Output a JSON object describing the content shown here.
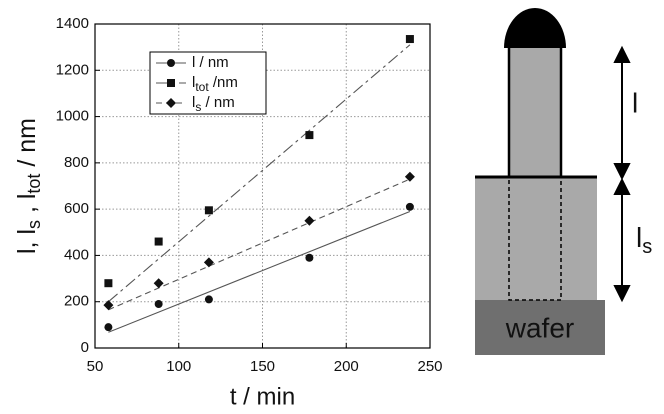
{
  "chart_data": {
    "type": "scatter",
    "xlabel": "t / min",
    "ylabel": [
      "l,  l",
      "s",
      " , l",
      "tot",
      " / nm"
    ],
    "xlim": [
      50,
      250
    ],
    "xticks": [
      50,
      100,
      150,
      200,
      250
    ],
    "ylim": [
      0,
      1400
    ],
    "yticks": [
      0,
      200,
      400,
      600,
      800,
      1000,
      1200,
      1400
    ],
    "grid": true,
    "legend": "upper left",
    "series": [
      {
        "name": [
          "l / nm"
        ],
        "color": "#111111",
        "marker": "circle",
        "line_style": "solid",
        "x": [
          58,
          88,
          118,
          178,
          238
        ],
        "values": [
          90,
          190,
          210,
          390,
          610
        ],
        "fit": {
          "x": [
            58,
            238
          ],
          "values": [
            68,
            590
          ]
        }
      },
      {
        "name": [
          "l",
          "tot",
          " /nm"
        ],
        "color": "#111111",
        "marker": "square",
        "line_style": "dashdot",
        "x": [
          58,
          88,
          118,
          178,
          238
        ],
        "values": [
          280,
          460,
          595,
          920,
          1335
        ],
        "fit": {
          "x": [
            58,
            238
          ],
          "values": [
            200,
            1310
          ]
        }
      },
      {
        "name": [
          "l",
          "s",
          " / nm"
        ],
        "color": "#111111",
        "marker": "diamond",
        "line_style": "dashed",
        "x": [
          58,
          88,
          118,
          178,
          238
        ],
        "values": [
          185,
          280,
          370,
          550,
          740
        ],
        "fit": {
          "x": [
            58,
            238
          ],
          "values": [
            165,
            730
          ]
        }
      }
    ]
  },
  "diagram": {
    "upper_label": "l",
    "lower_label": [
      "l",
      "s"
    ],
    "base_label": "wafer"
  }
}
